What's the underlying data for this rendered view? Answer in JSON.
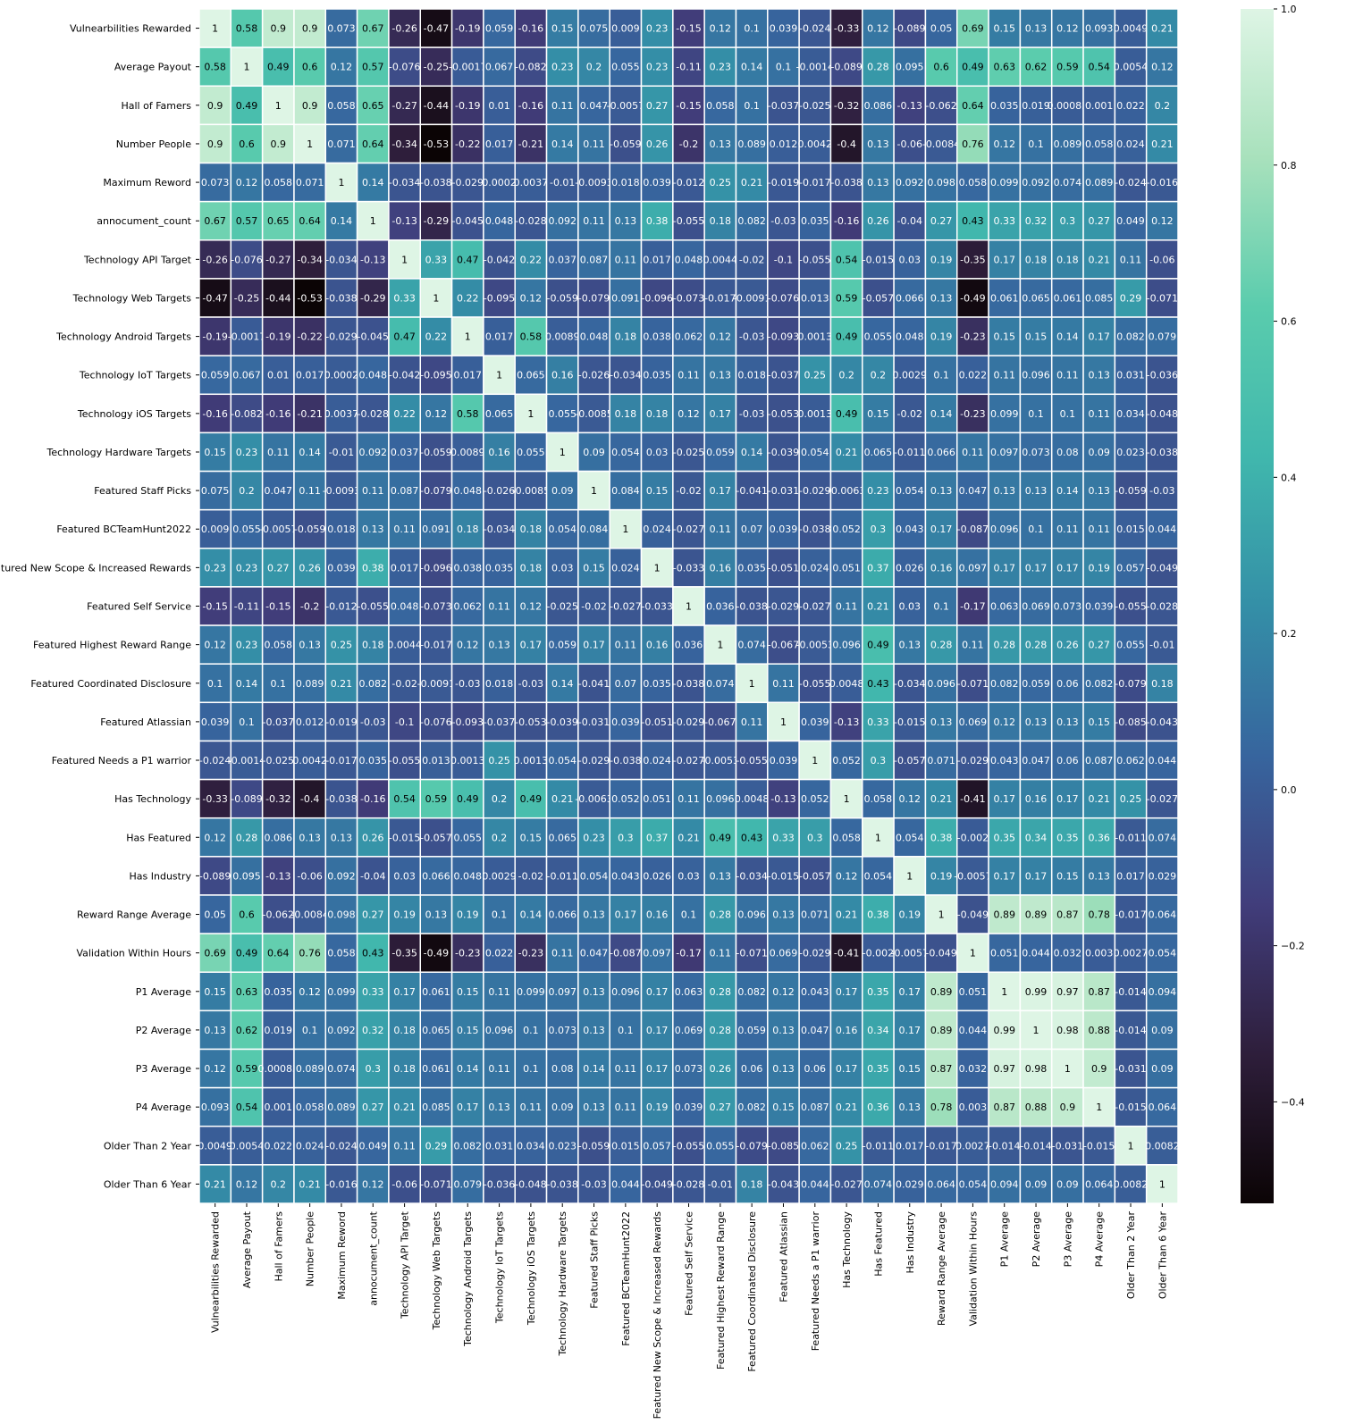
{
  "chart_data": {
    "type": "heatmap",
    "title": "",
    "colormap": "mako",
    "vmin": -0.53,
    "vmax": 1.0,
    "colorbar_ticks": [
      1.0,
      0.8,
      0.6,
      0.4,
      0.2,
      0.0,
      -0.2,
      -0.4
    ],
    "colorbar_tick_labels": [
      "1.0",
      "0.8",
      "0.6",
      "0.4",
      "0.2",
      "0.0",
      "−0.2",
      "−0.4"
    ],
    "cmap_stops": [
      "#0b0405",
      "#2e1e3b",
      "#413d7b",
      "#37659e",
      "#348fa7",
      "#40b7ad",
      "#5accad",
      "#a8e1bc",
      "#def5e5"
    ],
    "labels": [
      "Vulnearbilities Rewarded",
      "Average Payout",
      "Hall of Famers",
      "Number People",
      "Maximum Reword",
      "annocument_count",
      "Technology API Target",
      "Technology Web Targets",
      "Technology Android Targets",
      "Technology IoT Targets",
      "Technology iOS Targets",
      "Technology Hardware Targets",
      "Featured Staff Picks",
      "Featured BCTeamHunt2022",
      "Featured New Scope & Increased Rewards",
      "Featured Self Service",
      "Featured Highest Reward Range",
      "Featured Coordinated Disclosure",
      "Featured Atlassian",
      "Featured Needs a P1 warrior",
      "Has Technology",
      "Has Featured",
      "Has Industry",
      "Reward Range Average",
      "Validation Within Hours",
      "P1 Average",
      "P2 Average",
      "P3 Average",
      "P4 Average",
      "Older Than 2 Year",
      "Older Than 6 Year"
    ],
    "values": [
      [
        1,
        0.58,
        0.9,
        0.9,
        0.073,
        0.67,
        -0.26,
        -0.47,
        -0.19,
        0.059,
        -0.16,
        0.15,
        0.075,
        0.009,
        0.23,
        -0.15,
        0.12,
        0.1,
        0.039,
        -0.024,
        -0.33,
        0.12,
        -0.089,
        0.05,
        0.69,
        0.15,
        0.13,
        0.12,
        0.093,
        0.0049,
        0.21
      ],
      [
        0.58,
        1,
        0.49,
        0.6,
        0.12,
        0.57,
        -0.076,
        -0.25,
        -0.0017,
        0.067,
        -0.082,
        0.23,
        0.2,
        0.055,
        0.23,
        -0.11,
        0.23,
        0.14,
        0.1,
        -0.0014,
        -0.089,
        0.28,
        0.095,
        0.6,
        0.49,
        0.63,
        0.62,
        0.59,
        0.54,
        0.0054,
        0.12
      ],
      [
        0.9,
        0.49,
        1,
        0.9,
        0.058,
        0.65,
        -0.27,
        -0.44,
        -0.19,
        0.01,
        -0.16,
        0.11,
        0.047,
        -0.0057,
        0.27,
        -0.15,
        0.058,
        0.1,
        -0.037,
        -0.025,
        -0.32,
        0.086,
        -0.13,
        -0.062,
        0.64,
        0.035,
        0.019,
        0.00083,
        0.001,
        0.022,
        0.2
      ],
      [
        0.9,
        0.6,
        0.9,
        1,
        0.071,
        0.64,
        -0.34,
        -0.53,
        -0.22,
        0.017,
        -0.21,
        0.14,
        0.11,
        -0.059,
        0.26,
        -0.2,
        0.13,
        0.089,
        0.012,
        0.0042,
        -0.4,
        0.13,
        -0.06,
        -0.0084,
        0.76,
        0.12,
        0.1,
        0.089,
        0.058,
        0.024,
        0.21
      ],
      [
        0.073,
        0.12,
        0.058,
        0.071,
        1,
        0.14,
        -0.034,
        -0.038,
        -0.029,
        0.0002,
        0.0037,
        -0.01,
        -0.0093,
        0.018,
        0.039,
        -0.012,
        0.25,
        0.21,
        -0.019,
        -0.017,
        -0.038,
        0.13,
        0.092,
        0.098,
        0.058,
        0.099,
        0.092,
        0.074,
        0.089,
        -0.024,
        -0.016
      ],
      [
        0.67,
        0.57,
        0.65,
        0.64,
        0.14,
        1,
        -0.13,
        -0.29,
        -0.045,
        0.048,
        -0.028,
        0.092,
        0.11,
        0.13,
        0.38,
        -0.055,
        0.18,
        0.082,
        -0.03,
        0.035,
        -0.16,
        0.26,
        -0.04,
        0.27,
        0.43,
        0.33,
        0.32,
        0.3,
        0.27,
        0.049,
        0.12
      ],
      [
        -0.26,
        -0.076,
        -0.27,
        -0.34,
        -0.034,
        -0.13,
        1,
        0.33,
        0.47,
        -0.042,
        0.22,
        0.037,
        0.087,
        0.11,
        0.017,
        0.048,
        0.0044,
        -0.02,
        -0.1,
        -0.055,
        0.54,
        -0.015,
        0.03,
        0.19,
        -0.35,
        0.17,
        0.18,
        0.18,
        0.21,
        0.11,
        -0.06
      ],
      [
        -0.47,
        -0.25,
        -0.44,
        -0.53,
        -0.038,
        -0.29,
        0.33,
        1,
        0.22,
        -0.095,
        0.12,
        -0.059,
        -0.079,
        0.091,
        -0.096,
        -0.073,
        -0.017,
        -0.0091,
        -0.076,
        0.013,
        0.59,
        -0.057,
        0.066,
        0.13,
        -0.49,
        0.061,
        0.065,
        0.061,
        0.085,
        0.29,
        -0.071
      ],
      [
        -0.19,
        -0.0017,
        -0.19,
        -0.22,
        -0.029,
        -0.045,
        0.47,
        0.22,
        1,
        0.017,
        0.58,
        0.0089,
        0.048,
        0.18,
        0.038,
        0.062,
        0.12,
        -0.03,
        -0.093,
        0.0013,
        0.49,
        0.055,
        0.048,
        0.19,
        -0.23,
        0.15,
        0.15,
        0.14,
        0.17,
        0.082,
        0.079
      ],
      [
        0.059,
        0.067,
        0.01,
        0.017,
        0.0002,
        0.048,
        -0.042,
        -0.095,
        0.017,
        1,
        0.065,
        0.16,
        -0.026,
        -0.034,
        0.035,
        0.11,
        0.13,
        0.018,
        -0.037,
        0.25,
        0.2,
        0.2,
        0.0029,
        0.1,
        0.022,
        0.11,
        0.096,
        0.11,
        0.13,
        0.031,
        -0.036
      ],
      [
        -0.16,
        -0.082,
        -0.16,
        -0.21,
        0.0037,
        -0.028,
        0.22,
        0.12,
        0.58,
        0.065,
        1,
        0.055,
        -0.0085,
        0.18,
        0.18,
        0.12,
        0.17,
        -0.03,
        -0.053,
        0.0013,
        0.49,
        0.15,
        -0.02,
        0.14,
        -0.23,
        0.099,
        0.1,
        0.1,
        0.11,
        0.034,
        -0.048
      ],
      [
        0.15,
        0.23,
        0.11,
        0.14,
        -0.01,
        0.092,
        0.037,
        -0.059,
        0.0089,
        0.16,
        0.055,
        1,
        0.09,
        0.054,
        0.03,
        -0.025,
        0.059,
        0.14,
        -0.039,
        0.054,
        0.21,
        0.065,
        -0.011,
        0.066,
        0.11,
        0.097,
        0.073,
        0.08,
        0.09,
        0.023,
        -0.038
      ],
      [
        0.075,
        0.2,
        0.047,
        0.11,
        -0.0093,
        0.11,
        0.087,
        -0.079,
        0.048,
        -0.026,
        -0.0085,
        0.09,
        1,
        0.084,
        0.15,
        -0.02,
        0.17,
        -0.041,
        -0.031,
        -0.029,
        -0.0063,
        0.23,
        0.054,
        0.13,
        0.047,
        0.13,
        0.13,
        0.14,
        0.13,
        -0.059,
        -0.03
      ],
      [
        0.009,
        0.055,
        -0.0057,
        -0.059,
        0.018,
        0.13,
        0.11,
        0.091,
        0.18,
        -0.034,
        0.18,
        0.054,
        0.084,
        1,
        0.024,
        -0.027,
        0.11,
        0.07,
        0.039,
        -0.038,
        0.052,
        0.3,
        0.043,
        0.17,
        -0.087,
        0.096,
        0.1,
        0.11,
        0.11,
        0.015,
        0.044
      ],
      [
        0.23,
        0.23,
        0.27,
        0.26,
        0.039,
        0.38,
        0.017,
        -0.096,
        0.038,
        0.035,
        0.18,
        0.03,
        0.15,
        0.024,
        1,
        -0.033,
        0.16,
        0.035,
        -0.051,
        0.024,
        0.051,
        0.37,
        0.026,
        0.16,
        0.097,
        0.17,
        0.17,
        0.17,
        0.19,
        0.057,
        -0.049
      ],
      [
        -0.15,
        -0.11,
        -0.15,
        -0.2,
        -0.012,
        -0.055,
        0.048,
        -0.073,
        0.062,
        0.11,
        0.12,
        -0.025,
        -0.02,
        -0.027,
        -0.033,
        1,
        0.036,
        -0.038,
        -0.029,
        -0.027,
        0.11,
        0.21,
        0.03,
        0.1,
        -0.17,
        0.063,
        0.069,
        0.073,
        0.039,
        -0.055,
        -0.028
      ],
      [
        0.12,
        0.23,
        0.058,
        0.13,
        0.25,
        0.18,
        0.0044,
        -0.017,
        0.12,
        0.13,
        0.17,
        0.059,
        0.17,
        0.11,
        0.16,
        0.036,
        1,
        0.074,
        -0.067,
        -0.0053,
        0.096,
        0.49,
        0.13,
        0.28,
        0.11,
        0.28,
        0.28,
        0.26,
        0.27,
        0.055,
        -0.01
      ],
      [
        0.1,
        0.14,
        0.1,
        0.089,
        0.21,
        0.082,
        -0.02,
        -0.0091,
        -0.03,
        0.018,
        -0.03,
        0.14,
        -0.041,
        0.07,
        0.035,
        -0.038,
        0.074,
        1,
        0.11,
        -0.055,
        0.0048,
        0.43,
        -0.034,
        0.096,
        -0.071,
        0.082,
        0.059,
        0.06,
        0.082,
        -0.079,
        0.18
      ],
      [
        0.039,
        0.1,
        -0.037,
        0.012,
        -0.019,
        -0.03,
        -0.1,
        -0.076,
        -0.093,
        -0.037,
        -0.053,
        -0.039,
        -0.031,
        0.039,
        -0.051,
        -0.029,
        -0.067,
        0.11,
        1,
        0.039,
        -0.13,
        0.33,
        -0.015,
        0.13,
        0.069,
        0.12,
        0.13,
        0.13,
        0.15,
        -0.085,
        -0.043
      ],
      [
        -0.024,
        -0.0014,
        -0.025,
        0.0042,
        -0.017,
        0.035,
        -0.055,
        0.013,
        0.0013,
        0.25,
        0.0013,
        0.054,
        -0.029,
        -0.038,
        0.024,
        -0.027,
        -0.0053,
        -0.055,
        0.039,
        1,
        0.052,
        0.3,
        -0.057,
        0.071,
        -0.029,
        0.043,
        0.047,
        0.06,
        0.087,
        0.062,
        0.044
      ],
      [
        -0.33,
        -0.089,
        -0.32,
        -0.4,
        -0.038,
        -0.16,
        0.54,
        0.59,
        0.49,
        0.2,
        0.49,
        0.21,
        -0.0063,
        0.052,
        0.051,
        0.11,
        0.096,
        0.0048,
        -0.13,
        0.052,
        1,
        0.058,
        0.12,
        0.21,
        -0.41,
        0.17,
        0.16,
        0.17,
        0.21,
        0.25,
        -0.027
      ],
      [
        0.12,
        0.28,
        0.086,
        0.13,
        0.13,
        0.26,
        -0.015,
        -0.057,
        0.055,
        0.2,
        0.15,
        0.065,
        0.23,
        0.3,
        0.37,
        0.21,
        0.49,
        0.43,
        0.33,
        0.3,
        0.058,
        1,
        0.054,
        0.38,
        -0.002,
        0.35,
        0.34,
        0.35,
        0.36,
        -0.011,
        0.074
      ],
      [
        -0.089,
        0.095,
        -0.13,
        -0.06,
        0.092,
        -0.04,
        0.03,
        0.066,
        0.048,
        0.0029,
        -0.02,
        -0.011,
        0.054,
        0.043,
        0.026,
        0.03,
        0.13,
        -0.034,
        -0.015,
        -0.057,
        0.12,
        0.054,
        1,
        0.19,
        -0.0057,
        0.17,
        0.17,
        0.15,
        0.13,
        0.017,
        0.029
      ],
      [
        0.05,
        0.6,
        -0.062,
        -0.0084,
        0.098,
        0.27,
        0.19,
        0.13,
        0.19,
        0.1,
        0.14,
        0.066,
        0.13,
        0.17,
        0.16,
        0.1,
        0.28,
        0.096,
        0.13,
        0.071,
        0.21,
        0.38,
        0.19,
        1,
        -0.049,
        0.89,
        0.89,
        0.87,
        0.78,
        -0.017,
        0.064
      ],
      [
        0.69,
        0.49,
        0.64,
        0.76,
        0.058,
        0.43,
        -0.35,
        -0.49,
        -0.23,
        0.022,
        -0.23,
        0.11,
        0.047,
        -0.087,
        0.097,
        -0.17,
        0.11,
        -0.071,
        0.069,
        -0.029,
        -0.41,
        -0.002,
        -0.0057,
        -0.049,
        1,
        0.051,
        0.044,
        0.032,
        0.003,
        0.0027,
        0.054
      ],
      [
        0.15,
        0.63,
        0.035,
        0.12,
        0.099,
        0.33,
        0.17,
        0.061,
        0.15,
        0.11,
        0.099,
        0.097,
        0.13,
        0.096,
        0.17,
        0.063,
        0.28,
        0.082,
        0.12,
        0.043,
        0.17,
        0.35,
        0.17,
        0.89,
        0.051,
        1,
        0.99,
        0.97,
        0.87,
        -0.014,
        0.094
      ],
      [
        0.13,
        0.62,
        0.019,
        0.1,
        0.092,
        0.32,
        0.18,
        0.065,
        0.15,
        0.096,
        0.1,
        0.073,
        0.13,
        0.1,
        0.17,
        0.069,
        0.28,
        0.059,
        0.13,
        0.047,
        0.16,
        0.34,
        0.17,
        0.89,
        0.044,
        0.99,
        1,
        0.98,
        0.88,
        -0.014,
        0.09
      ],
      [
        0.12,
        0.59,
        0.00083,
        0.089,
        0.074,
        0.3,
        0.18,
        0.061,
        0.14,
        0.11,
        0.1,
        0.08,
        0.14,
        0.11,
        0.17,
        0.073,
        0.26,
        0.06,
        0.13,
        0.06,
        0.17,
        0.35,
        0.15,
        0.87,
        0.032,
        0.97,
        0.98,
        1,
        0.9,
        -0.031,
        0.09
      ],
      [
        0.093,
        0.54,
        0.001,
        0.058,
        0.089,
        0.27,
        0.21,
        0.085,
        0.17,
        0.13,
        0.11,
        0.09,
        0.13,
        0.11,
        0.19,
        0.039,
        0.27,
        0.082,
        0.15,
        0.087,
        0.21,
        0.36,
        0.13,
        0.78,
        0.003,
        0.87,
        0.88,
        0.9,
        1,
        -0.015,
        0.064
      ],
      [
        0.0049,
        0.0054,
        0.022,
        0.024,
        -0.024,
        0.049,
        0.11,
        0.29,
        0.082,
        0.031,
        0.034,
        0.023,
        -0.059,
        0.015,
        0.057,
        -0.055,
        0.055,
        -0.079,
        -0.085,
        0.062,
        0.25,
        -0.011,
        0.017,
        -0.017,
        0.0027,
        -0.014,
        -0.014,
        -0.031,
        -0.015,
        1,
        0.0082
      ],
      [
        0.21,
        0.12,
        0.2,
        0.21,
        -0.016,
        0.12,
        -0.06,
        -0.071,
        0.079,
        -0.036,
        -0.048,
        -0.038,
        -0.03,
        0.044,
        -0.049,
        -0.028,
        -0.01,
        0.18,
        -0.043,
        0.044,
        -0.027,
        0.074,
        0.029,
        0.064,
        0.054,
        0.094,
        0.09,
        0.09,
        0.064,
        0.0082,
        1
      ]
    ]
  }
}
